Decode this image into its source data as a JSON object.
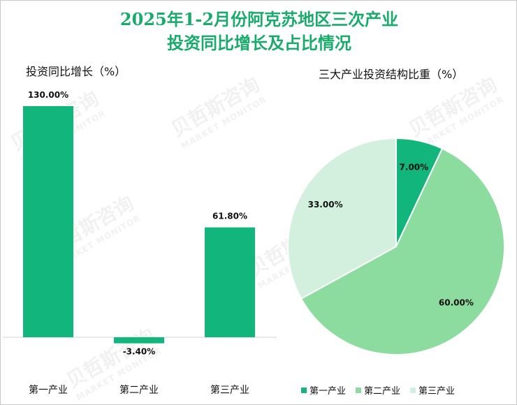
{
  "title_line1": "2025年1-2月份阿克苏地区三次产业",
  "title_line2": "投资同比增长及占比情况",
  "watermark": {
    "cn": "贝哲斯咨询",
    "en": "MARKET MONITOR"
  },
  "colors": {
    "title": "#1aaa6c",
    "s1": "#12b57c",
    "s2": "#8ddc9f",
    "s3": "#d3f0df"
  },
  "chart_data": [
    {
      "type": "bar",
      "title": "投资同比增长（%）",
      "categories": [
        "第一产业",
        "第二产业",
        "第三产业"
      ],
      "values": [
        130.0,
        -3.4,
        61.8
      ],
      "value_labels": [
        "130.00%",
        "-3.40%",
        "61.80%"
      ],
      "grid": false
    },
    {
      "type": "pie",
      "title": "三大产业投资结构比重（%）",
      "labels": [
        "第一产业",
        "第二产业",
        "第三产业"
      ],
      "values": [
        7.0,
        60.0,
        33.0
      ],
      "value_labels": [
        "7.00%",
        "60.00%",
        "33.00%"
      ],
      "legend_position": "bottom"
    }
  ]
}
